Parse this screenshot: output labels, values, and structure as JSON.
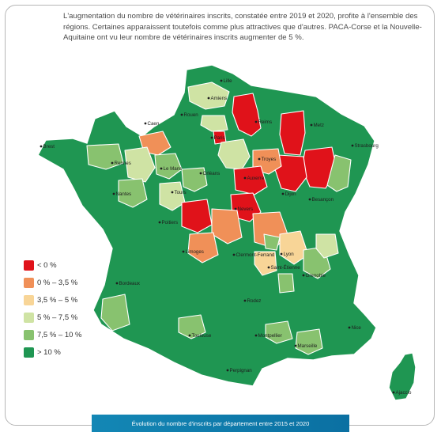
{
  "intro": {
    "text": "L'augmentation du nombre de vétérinaires inscrits, constatée entre 2019 et 2020, profite à l'ensemble des régions. Certaines apparaissent toutefois comme plus attractives que d'autres. PACA-Corse et la Nouvelle-Aquitaine ont vu leur nombre de vétérinaires inscrits augmenter de 5 %."
  },
  "colors": {
    "dark_red": "#e0121a",
    "orange": "#f09058",
    "beige": "#f8d597",
    "light_green": "#cfe3a4",
    "mid_green": "#88c26f",
    "dark_green": "#1f9652",
    "border": "#ffffff",
    "caption_bg": "#0f7eae"
  },
  "legend": [
    {
      "label": "< 0 %",
      "color": "#e0121a"
    },
    {
      "label": "0 % – 3,5 %",
      "color": "#f09058"
    },
    {
      "label": "3,5 % – 5 %",
      "color": "#f8d597"
    },
    {
      "label": "5 % – 7,5 %",
      "color": "#cfe3a4"
    },
    {
      "label": "7,5 % – 10 %",
      "color": "#88c26f"
    },
    {
      "label": "> 10 %",
      "color": "#1f9652"
    }
  ],
  "cities": [
    "Lille",
    "Amiens",
    "Rouen",
    "Caen",
    "Reims",
    "Metz",
    "Strasbourg",
    "Paris",
    "Brest",
    "Rennes",
    "Le Mans",
    "Orléans",
    "Troyes",
    "Nantes",
    "Tours",
    "Auxerre",
    "Dijon",
    "Besançon",
    "Poitiers",
    "Nevers",
    "Limoges",
    "Clermont-Ferrand",
    "Lyon",
    "Saint-Étienne",
    "Grenoble",
    "Bordeaux",
    "Rodez",
    "Nice",
    "Toulouse",
    "Montpellier",
    "Marseille",
    "Perpignan",
    "Ajaccio"
  ],
  "caption": "Évolution du nombre d'inscrits par département entre 2015 et 2020"
}
